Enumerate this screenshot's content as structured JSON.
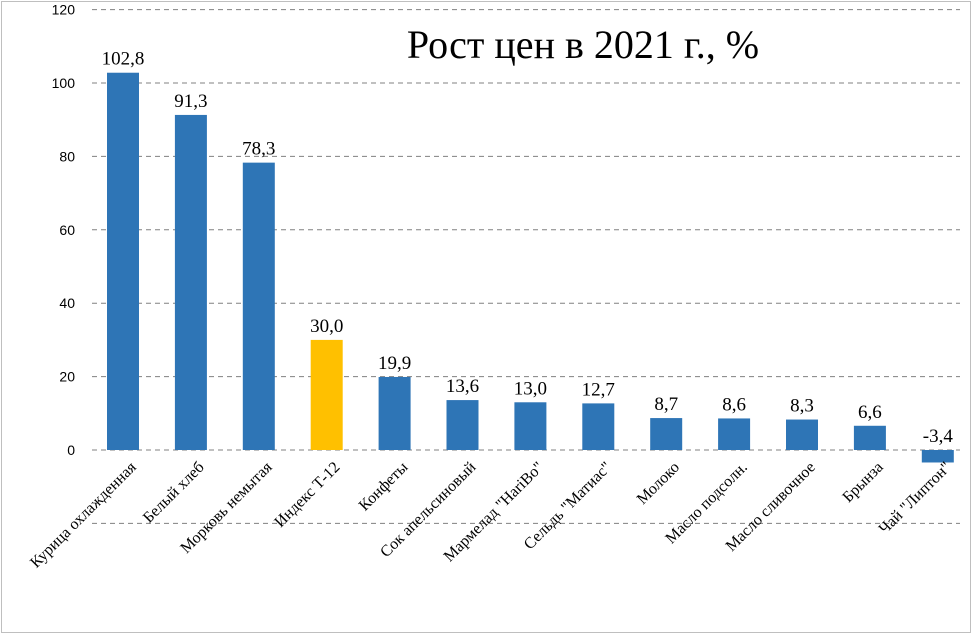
{
  "chart_data": {
    "type": "bar",
    "title": "Рост цен в 2021 г., %",
    "xlabel": "",
    "ylabel": "",
    "ylim": [
      -20,
      120
    ],
    "yticks": [
      0,
      20,
      40,
      60,
      80,
      100,
      120
    ],
    "ytick_labels": [
      "0",
      "20",
      "40",
      "60",
      "80",
      "100",
      "120"
    ],
    "grid": true,
    "legend": "none",
    "categories": [
      "Курица охлажденная",
      "Белый хлеб",
      "Морковь немытая",
      "Индекс Т-12",
      "Конфеты",
      "Сок апельсиновый",
      "Мармелад \"HariBo\"",
      "Сельдь \"Матиас\"",
      "Молоко",
      "Масло подсолн.",
      "Масло сливочное",
      "Брынза",
      "Чай \"Липтон\""
    ],
    "values": [
      102.8,
      91.3,
      78.3,
      30.0,
      19.9,
      13.6,
      13.0,
      12.7,
      8.7,
      8.6,
      8.3,
      6.6,
      -3.4
    ],
    "data_labels": [
      "102,8",
      "91,3",
      "78,3",
      "30,0",
      "19,9",
      "13,6",
      "13,0",
      "12,7",
      "8,7",
      "8,6",
      "8,3",
      "6,6",
      "-3,4"
    ],
    "colors": {
      "default": "#2e75b6",
      "highlight": "#ffc000",
      "highlight_category": "Индекс Т-12",
      "grid": "#808080"
    }
  }
}
